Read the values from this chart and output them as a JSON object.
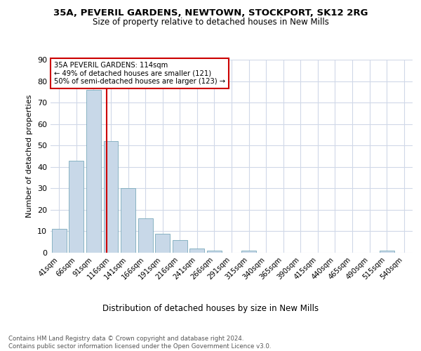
{
  "title": "35A, PEVERIL GARDENS, NEWTOWN, STOCKPORT, SK12 2RG",
  "subtitle": "Size of property relative to detached houses in New Mills",
  "xlabel": "Distribution of detached houses by size in New Mills",
  "ylabel": "Number of detached properties",
  "categories": [
    "41sqm",
    "66sqm",
    "91sqm",
    "116sqm",
    "141sqm",
    "166sqm",
    "191sqm",
    "216sqm",
    "241sqm",
    "266sqm",
    "291sqm",
    "315sqm",
    "340sqm",
    "365sqm",
    "390sqm",
    "415sqm",
    "440sqm",
    "465sqm",
    "490sqm",
    "515sqm",
    "540sqm"
  ],
  "values": [
    11,
    43,
    76,
    52,
    30,
    16,
    9,
    6,
    2,
    1,
    0,
    1,
    0,
    0,
    0,
    0,
    0,
    0,
    0,
    1,
    0
  ],
  "bar_color": "#c8d8e8",
  "bar_edge_color": "#7aaabb",
  "property_line_x": 2.75,
  "property_line_color": "#cc0000",
  "annotation_text": "35A PEVERIL GARDENS: 114sqm\n← 49% of detached houses are smaller (121)\n50% of semi-detached houses are larger (123) →",
  "annotation_box_color": "#ffffff",
  "annotation_box_edge_color": "#cc0000",
  "ylim": [
    0,
    90
  ],
  "yticks": [
    0,
    10,
    20,
    30,
    40,
    50,
    60,
    70,
    80,
    90
  ],
  "footer_text": "Contains HM Land Registry data © Crown copyright and database right 2024.\nContains public sector information licensed under the Open Government Licence v3.0.",
  "bg_color": "#ffffff",
  "grid_color": "#d0d8e8"
}
